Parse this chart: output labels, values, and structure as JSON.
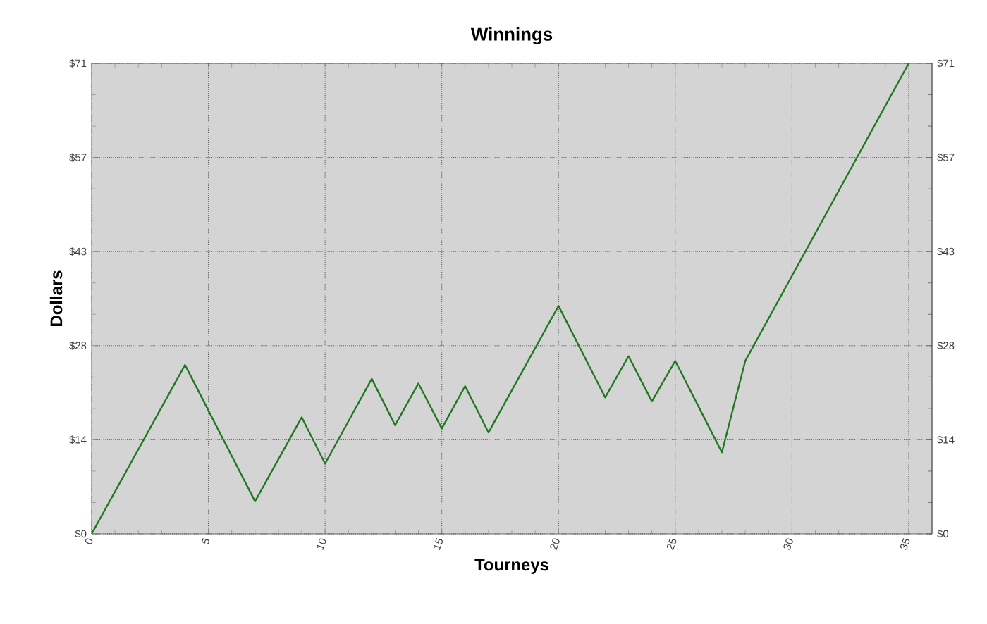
{
  "chart_data": {
    "type": "line",
    "title": "Winnings",
    "xlabel": "Tourneys",
    "ylabel": "Dollars",
    "x": [
      0,
      4,
      7,
      9,
      10,
      12,
      13,
      14,
      15,
      16,
      17,
      20,
      22,
      23,
      24,
      25,
      27,
      28,
      35
    ],
    "series": [
      {
        "color": "#217821",
        "values": [
          0,
          25.5,
          4.9,
          17.6,
          10.6,
          23.4,
          16.4,
          22.7,
          15.9,
          22.3,
          15.3,
          34.4,
          20.6,
          26.8,
          20.0,
          26.1,
          12.3,
          26.1,
          71
        ]
      }
    ],
    "xlim": [
      0,
      36
    ],
    "xticks": [
      0,
      5,
      10,
      15,
      20,
      25,
      30,
      35
    ],
    "ylim": [
      0,
      71
    ],
    "yticks": [
      {
        "value": 0,
        "label": "$0"
      },
      {
        "value": 14.2,
        "label": "$14"
      },
      {
        "value": 28.4,
        "label": "$28"
      },
      {
        "value": 42.6,
        "label": "$43"
      },
      {
        "value": 56.8,
        "label": "$57"
      },
      {
        "value": 71,
        "label": "$71"
      }
    ],
    "y2lim": [
      0,
      71
    ],
    "y2ticks": [
      {
        "value": 0,
        "label": "$0"
      },
      {
        "value": 14.2,
        "label": "$14"
      },
      {
        "value": 28.4,
        "label": "$28"
      },
      {
        "value": 42.6,
        "label": "$43"
      },
      {
        "value": 56.8,
        "label": "$57"
      },
      {
        "value": 71,
        "label": "$71"
      }
    ],
    "grid": true,
    "marker": "none",
    "line_style": "solid"
  }
}
